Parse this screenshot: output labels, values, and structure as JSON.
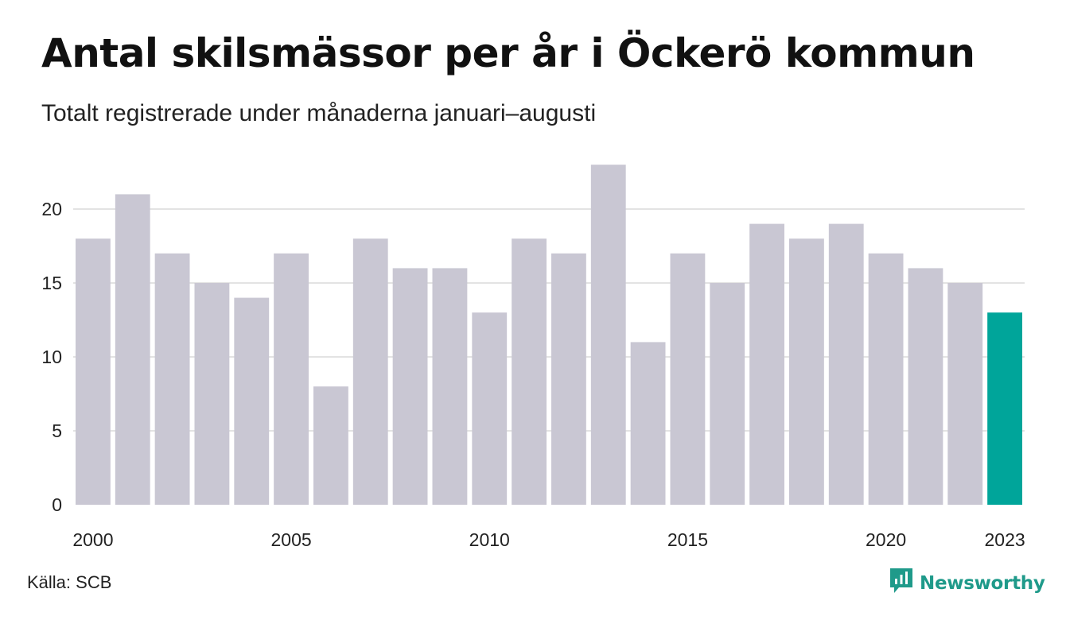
{
  "title": "Antal skilsmässor per år i Öckerö kommun",
  "subtitle": "Totalt registrerade under månaderna januari–augusti",
  "source": "Källa: SCB",
  "brand": {
    "name": "Newsworthy",
    "icon": "newsworthy-logo-icon",
    "color": "#1f9a8a"
  },
  "colors": {
    "bar": "#c9c7d3",
    "highlight": "#00a59a",
    "grid": "#e3e3e3"
  },
  "chart_data": {
    "type": "bar",
    "title": "Antal skilsmässor per år i Öckerö kommun",
    "categories": [
      "2000",
      "2001",
      "2002",
      "2003",
      "2004",
      "2005",
      "2006",
      "2007",
      "2008",
      "2009",
      "2010",
      "2011",
      "2012",
      "2013",
      "2014",
      "2015",
      "2016",
      "2017",
      "2018",
      "2019",
      "2020",
      "2021",
      "2022",
      "2023"
    ],
    "values": [
      18,
      21,
      17,
      15,
      14,
      17,
      8,
      18,
      16,
      16,
      13,
      18,
      17,
      23,
      11,
      17,
      15,
      19,
      18,
      19,
      17,
      16,
      15,
      13
    ],
    "highlight_category": "2023",
    "x_tick_labels": [
      "2000",
      "2005",
      "2010",
      "2015",
      "2020",
      "2023"
    ],
    "y_ticks": [
      0,
      5,
      10,
      15,
      20
    ],
    "ylim": [
      0,
      23
    ],
    "xlabel": "",
    "ylabel": "",
    "grid": "horizontal",
    "legend": "none"
  }
}
